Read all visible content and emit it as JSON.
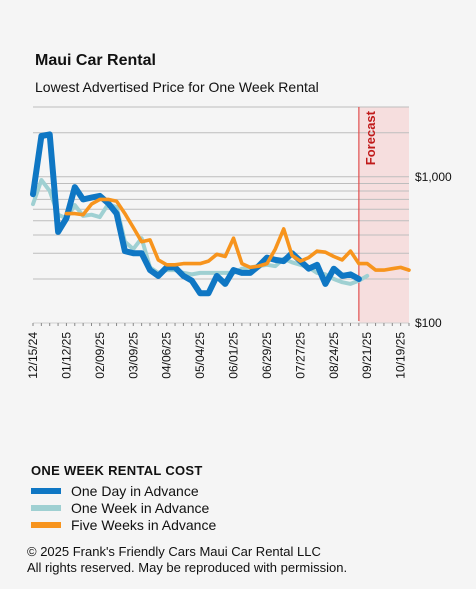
{
  "title": "Maui Car Rental",
  "subtitle": "Lowest Advertised Price for One Week Rental",
  "forecast_label": "Forecast",
  "legend": {
    "title": "ONE WEEK RENTAL COST",
    "items": [
      "One Day in Advance",
      "One Week in Advance",
      "Five Weeks in Advance"
    ]
  },
  "footer": {
    "line1": "© 2025 Frank's Friendly Cars Maui Car Rental LLC",
    "line2": "All rights reserved. May be reproduced with permission."
  },
  "colors": {
    "one_day": "#0f77c4",
    "one_week": "#9fd0d2",
    "five_weeks": "#f7941d",
    "forecast_bg": "#f6dede",
    "forecast_line": "#e05050",
    "forecast_text": "#c01a1a",
    "grid": "#bdbdbd",
    "background": "#f5f5f5"
  },
  "chart_data": {
    "type": "line",
    "y_scale": "log",
    "ylim": [
      100,
      3000
    ],
    "y_ticks": [
      100,
      1000
    ],
    "y_tick_labels": [
      "$100",
      "$1,000"
    ],
    "x_tick_labels": [
      "12/15/24",
      "01/12/25",
      "02/09/25",
      "03/09/25",
      "04/06/25",
      "05/04/25",
      "06/01/25",
      "06/29/25",
      "07/27/25",
      "08/24/25",
      "09/21/25",
      "10/19/25"
    ],
    "x_start": "2024-12-15",
    "x_end": "2025-10-26",
    "forecast_start": "2025-09-14",
    "series": [
      {
        "name": "One Day in Advance",
        "color": "#0f77c4",
        "points": [
          [
            "2024-12-15",
            760
          ],
          [
            "2024-12-22",
            1900
          ],
          [
            "2024-12-29",
            1950
          ],
          [
            "2025-01-05",
            420
          ],
          [
            "2025-01-12",
            520
          ],
          [
            "2025-01-19",
            850
          ],
          [
            "2025-01-26",
            700
          ],
          [
            "2025-02-02",
            720
          ],
          [
            "2025-02-09",
            740
          ],
          [
            "2025-02-16",
            660
          ],
          [
            "2025-02-23",
            560
          ],
          [
            "2025-03-02",
            310
          ],
          [
            "2025-03-09",
            300
          ],
          [
            "2025-03-16",
            300
          ],
          [
            "2025-03-23",
            230
          ],
          [
            "2025-03-30",
            210
          ],
          [
            "2025-04-06",
            240
          ],
          [
            "2025-04-13",
            240
          ],
          [
            "2025-04-20",
            210
          ],
          [
            "2025-04-27",
            195
          ],
          [
            "2025-05-04",
            160
          ],
          [
            "2025-05-11",
            160
          ],
          [
            "2025-05-18",
            210
          ],
          [
            "2025-05-25",
            185
          ],
          [
            "2025-06-01",
            230
          ],
          [
            "2025-06-08",
            220
          ],
          [
            "2025-06-15",
            220
          ],
          [
            "2025-06-22",
            245
          ],
          [
            "2025-06-29",
            280
          ],
          [
            "2025-07-06",
            270
          ],
          [
            "2025-07-13",
            265
          ],
          [
            "2025-07-20",
            300
          ],
          [
            "2025-07-27",
            265
          ],
          [
            "2025-08-03",
            235
          ],
          [
            "2025-08-10",
            250
          ],
          [
            "2025-08-17",
            185
          ],
          [
            "2025-08-24",
            235
          ],
          [
            "2025-08-31",
            210
          ],
          [
            "2025-09-07",
            215
          ],
          [
            "2025-09-14",
            200
          ]
        ]
      },
      {
        "name": "One Week in Advance",
        "color": "#9fd0d2",
        "points": [
          [
            "2024-12-15",
            650
          ],
          [
            "2024-12-22",
            950
          ],
          [
            "2024-12-29",
            800
          ],
          [
            "2025-01-05",
            550
          ],
          [
            "2025-01-12",
            520
          ],
          [
            "2025-01-19",
            640
          ],
          [
            "2025-01-26",
            540
          ],
          [
            "2025-02-02",
            550
          ],
          [
            "2025-02-09",
            530
          ],
          [
            "2025-02-16",
            650
          ],
          [
            "2025-02-23",
            620
          ],
          [
            "2025-03-02",
            360
          ],
          [
            "2025-03-09",
            320
          ],
          [
            "2025-03-16",
            380
          ],
          [
            "2025-03-23",
            240
          ],
          [
            "2025-03-30",
            220
          ],
          [
            "2025-04-06",
            230
          ],
          [
            "2025-04-13",
            230
          ],
          [
            "2025-04-20",
            220
          ],
          [
            "2025-04-27",
            215
          ],
          [
            "2025-05-04",
            220
          ],
          [
            "2025-05-11",
            220
          ],
          [
            "2025-05-18",
            220
          ],
          [
            "2025-05-25",
            220
          ],
          [
            "2025-06-01",
            220
          ],
          [
            "2025-06-08",
            235
          ],
          [
            "2025-06-15",
            240
          ],
          [
            "2025-06-22",
            245
          ],
          [
            "2025-06-29",
            250
          ],
          [
            "2025-07-06",
            245
          ],
          [
            "2025-07-13",
            275
          ],
          [
            "2025-07-20",
            260
          ],
          [
            "2025-07-27",
            250
          ],
          [
            "2025-08-03",
            240
          ],
          [
            "2025-08-10",
            220
          ],
          [
            "2025-08-17",
            215
          ],
          [
            "2025-08-24",
            200
          ],
          [
            "2025-08-31",
            190
          ],
          [
            "2025-09-07",
            185
          ],
          [
            "2025-09-14",
            195
          ],
          [
            "2025-09-21",
            210
          ]
        ]
      },
      {
        "name": "Five Weeks in Advance",
        "color": "#f7941d",
        "points": [
          [
            "2025-01-12",
            560
          ],
          [
            "2025-01-19",
            560
          ],
          [
            "2025-01-26",
            550
          ],
          [
            "2025-02-02",
            650
          ],
          [
            "2025-02-09",
            700
          ],
          [
            "2025-02-16",
            700
          ],
          [
            "2025-02-23",
            680
          ],
          [
            "2025-03-02",
            560
          ],
          [
            "2025-03-09",
            450
          ],
          [
            "2025-03-16",
            360
          ],
          [
            "2025-03-23",
            370
          ],
          [
            "2025-03-30",
            270
          ],
          [
            "2025-04-06",
            250
          ],
          [
            "2025-04-13",
            250
          ],
          [
            "2025-04-20",
            255
          ],
          [
            "2025-04-27",
            255
          ],
          [
            "2025-05-04",
            255
          ],
          [
            "2025-05-11",
            265
          ],
          [
            "2025-05-18",
            295
          ],
          [
            "2025-05-25",
            285
          ],
          [
            "2025-06-01",
            380
          ],
          [
            "2025-06-08",
            255
          ],
          [
            "2025-06-15",
            240
          ],
          [
            "2025-06-22",
            245
          ],
          [
            "2025-06-29",
            255
          ],
          [
            "2025-07-06",
            320
          ],
          [
            "2025-07-13",
            440
          ],
          [
            "2025-07-20",
            290
          ],
          [
            "2025-07-27",
            265
          ],
          [
            "2025-08-03",
            280
          ],
          [
            "2025-08-10",
            310
          ],
          [
            "2025-08-17",
            305
          ],
          [
            "2025-08-24",
            285
          ],
          [
            "2025-08-31",
            270
          ],
          [
            "2025-09-07",
            310
          ],
          [
            "2025-09-14",
            255
          ],
          [
            "2025-09-21",
            255
          ],
          [
            "2025-09-28",
            230
          ],
          [
            "2025-10-05",
            230
          ],
          [
            "2025-10-12",
            235
          ],
          [
            "2025-10-19",
            240
          ],
          [
            "2025-10-26",
            230
          ]
        ]
      }
    ]
  }
}
